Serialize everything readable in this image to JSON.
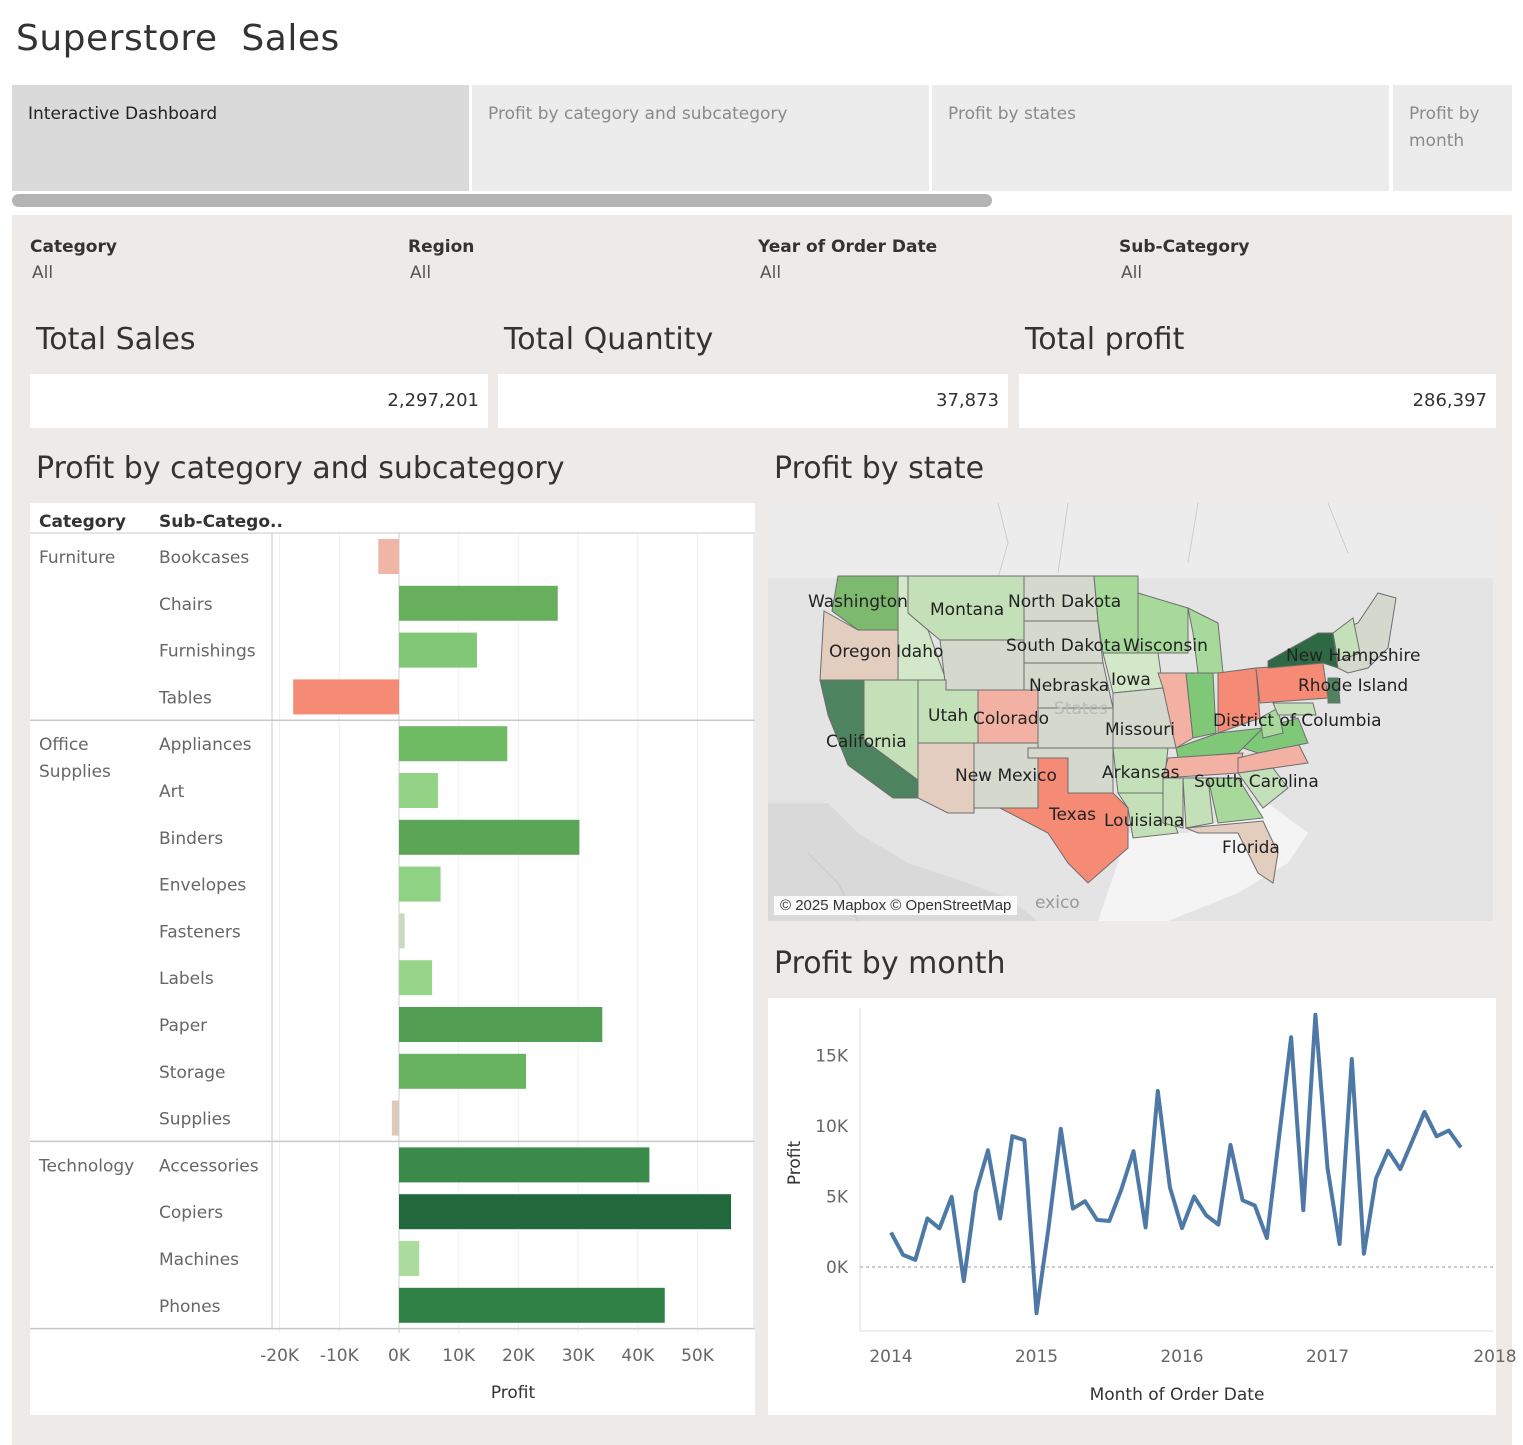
{
  "app": {
    "title": "Superstore  Sales"
  },
  "tabs": [
    {
      "label": "Interactive Dashboard",
      "active": true
    },
    {
      "label": "Profit by category and subcategory",
      "active": false
    },
    {
      "label": "Profit by states",
      "active": false
    },
    {
      "label": "Profit by month",
      "active": false
    }
  ],
  "filters": [
    {
      "label": "Category",
      "value": "All"
    },
    {
      "label": "Region",
      "value": "All"
    },
    {
      "label": "Year of Order Date",
      "value": "All"
    },
    {
      "label": "Sub-Category",
      "value": "All"
    }
  ],
  "kpis": [
    {
      "title": "Total Sales",
      "value": "2,297,201"
    },
    {
      "title": "Total Quantity",
      "value": "37,873"
    },
    {
      "title": "Total profit",
      "value": "286,397"
    }
  ],
  "sections": {
    "category": "Profit by category and subcategory",
    "state": "Profit by state",
    "month": "Profit by month"
  },
  "map": {
    "credit": "© 2025 Mapbox © OpenStreetMap",
    "faded_labels": [
      "exico",
      "States"
    ],
    "labels": [
      "Washington",
      "Montana",
      "North Dakota",
      "Oregon",
      "Idaho",
      "South Dakota",
      "Wisconsin",
      "New Hampshire",
      "Nebraska",
      "Iowa",
      "Rhode Island",
      "Utah",
      "Colorado",
      "District of Columbia",
      "California",
      "Missouri",
      "New Mexico",
      "Arkansas",
      "South Carolina",
      "Texas",
      "Louisiana",
      "Florida"
    ],
    "colors": {
      "strong_green": "#2d7a46",
      "green": "#7ec878",
      "light_green": "#c4e0b8",
      "neutral": "#d5d8cd",
      "light_red": "#f2b1a2",
      "red": "#f58a75",
      "tan": "#e2cdbf"
    }
  },
  "chart_data": [
    {
      "type": "bar",
      "title": "Profit by category and subcategory",
      "xlabel": "Profit",
      "column_headers": [
        "Category",
        "Sub-Catego.."
      ],
      "xlim": [
        -22000,
        58000
      ],
      "x_ticks": [
        "-20K",
        "-10K",
        "0K",
        "10K",
        "20K",
        "30K",
        "40K",
        "50K"
      ],
      "groups": [
        {
          "category": "Furniture",
          "items": [
            {
              "name": "Bookcases",
              "value": -3473,
              "color": "#efb6a6"
            },
            {
              "name": "Chairs",
              "value": 26590,
              "color": "#67ae5d"
            },
            {
              "name": "Furnishings",
              "value": 13059,
              "color": "#80c875"
            },
            {
              "name": "Tables",
              "value": -17725,
              "color": "#f58a75"
            }
          ]
        },
        {
          "category": "Office Supplies",
          "items": [
            {
              "name": "Appliances",
              "value": 18138,
              "color": "#6ebb64"
            },
            {
              "name": "Art",
              "value": 6528,
              "color": "#92d385"
            },
            {
              "name": "Binders",
              "value": 30222,
              "color": "#5ba656"
            },
            {
              "name": "Envelopes",
              "value": 6964,
              "color": "#90d283"
            },
            {
              "name": "Fasteners",
              "value": 950,
              "color": "#c9d9c1"
            },
            {
              "name": "Labels",
              "value": 5546,
              "color": "#97d68a"
            },
            {
              "name": "Paper",
              "value": 34054,
              "color": "#529e52"
            },
            {
              "name": "Storage",
              "value": 21279,
              "color": "#67b35f"
            },
            {
              "name": "Supplies",
              "value": -1189,
              "color": "#dcc9ba"
            }
          ]
        },
        {
          "category": "Technology",
          "items": [
            {
              "name": "Accessories",
              "value": 41937,
              "color": "#3a8a4b"
            },
            {
              "name": "Copiers",
              "value": 55618,
              "color": "#21693d"
            },
            {
              "name": "Machines",
              "value": 3385,
              "color": "#acdb9e"
            },
            {
              "name": "Phones",
              "value": 44516,
              "color": "#2f8146"
            }
          ]
        }
      ]
    },
    {
      "type": "line",
      "title": "Profit by month",
      "xlabel": "Month of Order Date",
      "ylabel": "Profit",
      "ylim": [
        -4000,
        18000
      ],
      "y_ticks": [
        "0K",
        "5K",
        "10K",
        "15K"
      ],
      "x_ticks": [
        "2014",
        "2015",
        "2016",
        "2017",
        "2018"
      ],
      "series": [
        {
          "color": "#4e79a7",
          "x": [
            "2014-01",
            "2014-02",
            "2014-03",
            "2014-04",
            "2014-05",
            "2014-06",
            "2014-07",
            "2014-08",
            "2014-09",
            "2014-10",
            "2014-11",
            "2014-12",
            "2015-01",
            "2015-02",
            "2015-03",
            "2015-04",
            "2015-05",
            "2015-06",
            "2015-07",
            "2015-08",
            "2015-09",
            "2015-10",
            "2015-11",
            "2015-12",
            "2016-01",
            "2016-02",
            "2016-03",
            "2016-04",
            "2016-05",
            "2016-06",
            "2016-07",
            "2016-08",
            "2016-09",
            "2016-10",
            "2016-11",
            "2016-12",
            "2017-01",
            "2017-02",
            "2017-03",
            "2017-04",
            "2017-05",
            "2017-06",
            "2017-07",
            "2017-08",
            "2017-09",
            "2017-10",
            "2017-11",
            "2017-12"
          ],
          "values": [
            2450,
            860,
            500,
            3450,
            2740,
            4980,
            -1000,
            5320,
            8280,
            3440,
            9280,
            9000,
            -3280,
            2810,
            9800,
            4140,
            4670,
            3340,
            3260,
            5510,
            8210,
            2810,
            12480,
            5650,
            2760,
            5000,
            3660,
            3010,
            8660,
            4730,
            4360,
            2050,
            9180,
            16300,
            4030,
            17890,
            7020,
            1630,
            14750,
            940,
            6280,
            8250,
            6940,
            8960,
            11000,
            9270,
            9680,
            8480
          ]
        }
      ]
    }
  ]
}
